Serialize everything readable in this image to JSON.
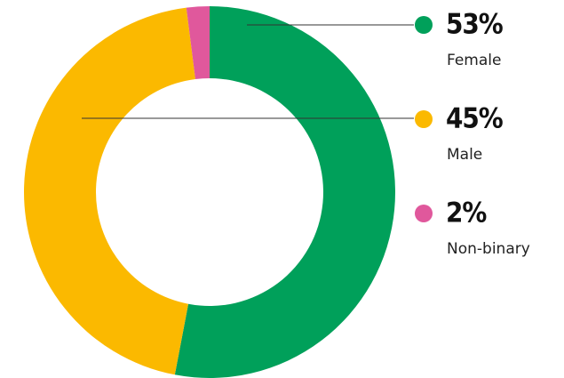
{
  "chart_data": {
    "type": "donut",
    "categories": [
      "Female",
      "Male",
      "Non-binary"
    ],
    "values": [
      53,
      45,
      2
    ],
    "value_labels": [
      "53%",
      "45%",
      "2%"
    ],
    "colors": [
      "#00a05a",
      "#fbb900",
      "#e0589c"
    ]
  }
}
